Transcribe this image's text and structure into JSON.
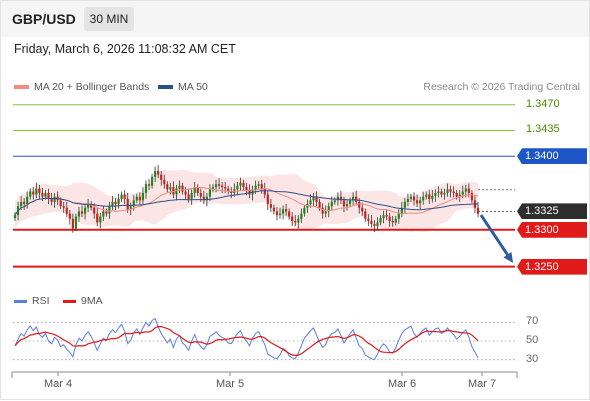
{
  "header": {
    "pair": "GBP/USD",
    "timeframe": "30 MIN"
  },
  "datetime": "Friday, March 6, 2026 11:08:32 AM CET",
  "legend": {
    "ma20": "MA 20 + Bollinger Bands",
    "ma50": "MA 50",
    "credit": "Research © 2026 Trading Central",
    "rsi": "RSI",
    "nine_ma": "9MA"
  },
  "colors": {
    "ma20": "#f28b82",
    "ma50": "#2b4f8a",
    "up": "#1a8a1a",
    "down": "#cc1f1f",
    "pivot": "#1e56c8",
    "support": "#e01919",
    "resistance": "#7ec242",
    "current": "#2d2d2d",
    "rsi": "#5b7fe0",
    "arrow": "#2f5e9c"
  },
  "chart_data": {
    "type": "candlestick",
    "price_range": [
      1.3225,
      1.349
    ],
    "x_ticks": [
      "Mar 4",
      "Mar 5",
      "Mar 6",
      "Mar 7"
    ],
    "levels": [
      {
        "value": 1.347,
        "label": "1.3470",
        "kind": "resistance"
      },
      {
        "value": 1.3435,
        "label": "1.3435",
        "kind": "resistance"
      },
      {
        "value": 1.34,
        "label": "1.3400",
        "kind": "pivot"
      },
      {
        "value": 1.33,
        "label": "1.3300",
        "kind": "support"
      },
      {
        "value": 1.325,
        "label": "1.3250",
        "kind": "support"
      }
    ],
    "current_price": {
      "value": 1.3325,
      "label": "1.3325"
    },
    "forecast_arrow": {
      "from": 1.332,
      "to": 1.3255
    },
    "closes": [
      1.332,
      1.3332,
      1.3338,
      1.3335,
      1.3345,
      1.3352,
      1.3348,
      1.3356,
      1.335,
      1.3345,
      1.335,
      1.3342,
      1.3338,
      1.3345,
      1.334,
      1.3332,
      1.333,
      1.3322,
      1.3315,
      1.3302,
      1.3318,
      1.3325,
      1.3322,
      1.333,
      1.3335,
      1.333,
      1.3322,
      1.331,
      1.3318,
      1.3325,
      1.3322,
      1.3332,
      1.3338,
      1.3335,
      1.3342,
      1.3348,
      1.3342,
      1.3328,
      1.3332,
      1.334,
      1.3345,
      1.334,
      1.335,
      1.3362,
      1.336,
      1.3372,
      1.338,
      1.3375,
      1.3368,
      1.3362,
      1.3355,
      1.3358,
      1.3348,
      1.3356,
      1.336,
      1.3352,
      1.3348,
      1.3342,
      1.335,
      1.3358,
      1.335,
      1.3345,
      1.334,
      1.3345,
      1.3355,
      1.3358,
      1.3362,
      1.336,
      1.3358,
      1.3356,
      1.3352,
      1.335,
      1.3355,
      1.336,
      1.3364,
      1.3358,
      1.3354,
      1.3348,
      1.3355,
      1.336,
      1.3362,
      1.3356,
      1.3348,
      1.3335,
      1.333,
      1.3325,
      1.332,
      1.3322,
      1.3328,
      1.3325,
      1.3318,
      1.3312,
      1.331,
      1.3315,
      1.3322,
      1.333,
      1.3335,
      1.334,
      1.3345,
      1.3338,
      1.333,
      1.3322,
      1.3325,
      1.3332,
      1.3338,
      1.334,
      1.3345,
      1.334,
      1.3332,
      1.3335,
      1.334,
      1.3345,
      1.3338,
      1.333,
      1.3325,
      1.3315,
      1.3312,
      1.3308,
      1.3305,
      1.331,
      1.3316,
      1.332,
      1.3318,
      1.3312,
      1.331,
      1.3315,
      1.3322,
      1.333,
      1.3338,
      1.3342,
      1.3345,
      1.334,
      1.3336,
      1.334,
      1.3345,
      1.3348,
      1.3342,
      1.3346,
      1.335,
      1.3352,
      1.3348,
      1.335,
      1.3355,
      1.3352,
      1.335,
      1.3345,
      1.3348,
      1.3352,
      1.3356,
      1.335,
      1.334,
      1.333,
      1.3322
    ],
    "rsi": {
      "levels": [
        70,
        50,
        30
      ],
      "range": [
        20,
        80
      ],
      "values": [
        45,
        52,
        58,
        55,
        62,
        66,
        61,
        65,
        57,
        54,
        58,
        50,
        47,
        54,
        51,
        44,
        46,
        41,
        38,
        33,
        46,
        53,
        50,
        56,
        60,
        55,
        48,
        40,
        47,
        53,
        51,
        58,
        62,
        59,
        64,
        68,
        60,
        47,
        51,
        59,
        63,
        57,
        64,
        70,
        66,
        72,
        74,
        65,
        58,
        53,
        48,
        52,
        43,
        52,
        56,
        48,
        45,
        40,
        50,
        57,
        48,
        44,
        41,
        46,
        55,
        57,
        60,
        56,
        54,
        52,
        48,
        47,
        53,
        58,
        61,
        54,
        50,
        45,
        53,
        58,
        60,
        53,
        46,
        36,
        34,
        32,
        31,
        35,
        42,
        40,
        34,
        32,
        31,
        37,
        45,
        53,
        57,
        61,
        64,
        56,
        49,
        43,
        46,
        54,
        58,
        59,
        63,
        56,
        48,
        53,
        58,
        62,
        53,
        45,
        42,
        35,
        33,
        31,
        30,
        36,
        43,
        47,
        44,
        38,
        37,
        43,
        51,
        58,
        62,
        64,
        66,
        58,
        54,
        58,
        62,
        64,
        56,
        60,
        63,
        64,
        58,
        60,
        64,
        60,
        57,
        52,
        55,
        59,
        62,
        54,
        44,
        38,
        32
      ]
    }
  }
}
